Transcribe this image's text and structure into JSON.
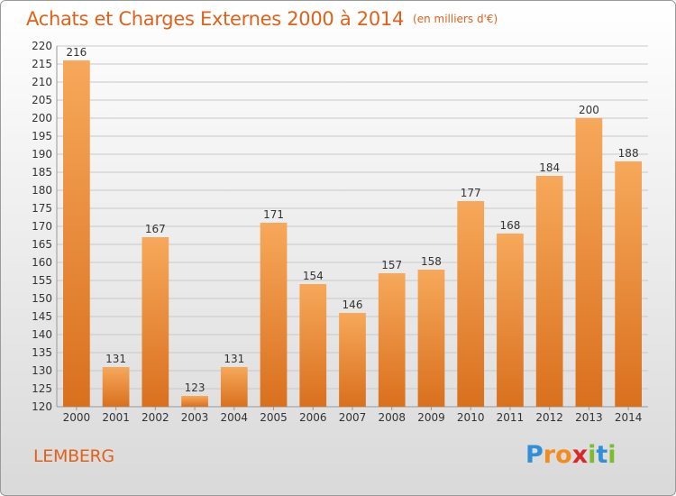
{
  "title": "Achats et Charges Externes 2000 à 2014",
  "subtitle": "(en milliers d'€)",
  "place": "LEMBERG",
  "logo": {
    "text": "Proxiti",
    "letters": [
      {
        "ch": "P",
        "color": "#2f8fd8"
      },
      {
        "ch": "r",
        "color": "#f28c1e"
      },
      {
        "ch": "o",
        "color": "#f28c1e"
      },
      {
        "ch": "x",
        "color": "#d8282a"
      },
      {
        "ch": "i",
        "color": "#7cbc2e"
      },
      {
        "ch": "t",
        "color": "#2f8fd8"
      },
      {
        "ch": "i",
        "color": "#7cbc2e"
      }
    ]
  },
  "colors": {
    "accent": "#e0621a",
    "bar_top": "#f7a85a",
    "bar_bottom": "#d9701e",
    "grid": "#c8c8c8",
    "axis_text": "#333333"
  },
  "chart_data": {
    "type": "bar",
    "categories": [
      "2000",
      "2001",
      "2002",
      "2003",
      "2004",
      "2005",
      "2006",
      "2007",
      "2008",
      "2009",
      "2010",
      "2011",
      "2012",
      "2013",
      "2014"
    ],
    "values": [
      216,
      131,
      167,
      123,
      131,
      171,
      154,
      146,
      157,
      158,
      177,
      168,
      184,
      200,
      188
    ],
    "ylim": [
      120,
      220
    ],
    "yticks": [
      120,
      125,
      130,
      135,
      140,
      145,
      150,
      155,
      160,
      165,
      170,
      175,
      180,
      185,
      190,
      195,
      200,
      205,
      210,
      215,
      220
    ],
    "grid": true,
    "data_labels": true
  }
}
